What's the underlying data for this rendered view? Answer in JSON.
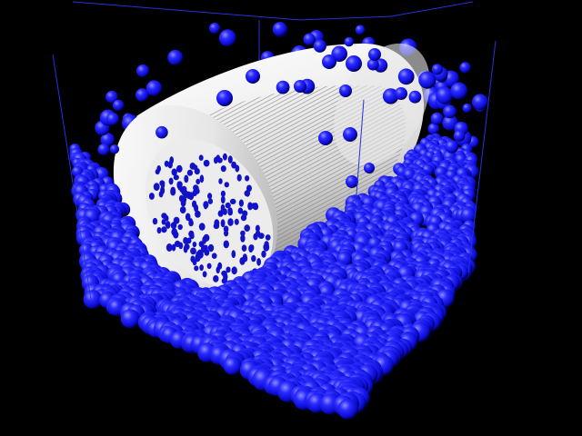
{
  "scene": {
    "kind": "3d-particle-render",
    "background_color": "#000000",
    "box_edge_color": "#2233dd",
    "particle_color": "#1a1aff",
    "particle_highlight": "#8c8cff",
    "particle_shadow": "#00003a",
    "cylinder_color": "#f2f2f2",
    "cylinder_shade": "#9a9a9a",
    "cylinder_end_hole_color": "#1212c8",
    "particle_count_pile": 1900,
    "particle_count_floating": 70
  }
}
